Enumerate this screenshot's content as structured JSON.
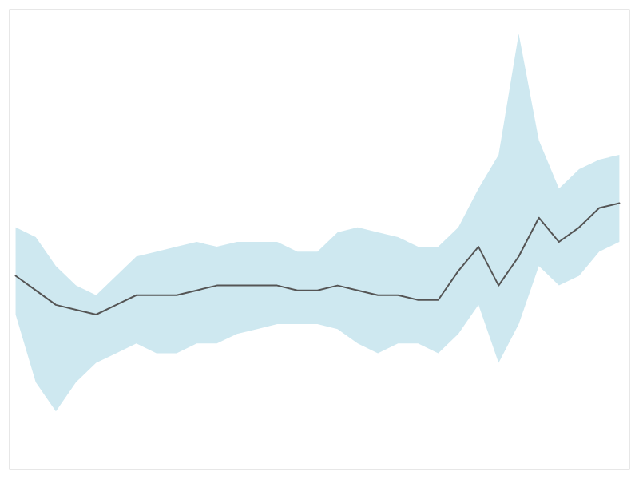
{
  "chart_data": {
    "type": "line",
    "x": [
      0,
      1,
      2,
      3,
      4,
      5,
      6,
      7,
      8,
      9,
      10,
      11,
      12,
      13,
      14,
      15,
      16,
      17,
      18,
      19,
      20,
      21,
      22,
      23,
      24,
      25,
      26,
      27,
      28,
      29,
      30
    ],
    "series": [
      {
        "type": "area",
        "color": "#add8e6",
        "lower": [
          42,
          28,
          22,
          28,
          32,
          34,
          36,
          34,
          34,
          36,
          36,
          38,
          39,
          40,
          40,
          40,
          39,
          36,
          34,
          36,
          36,
          34,
          38,
          44,
          32,
          40,
          52,
          48,
          50,
          55,
          57
        ],
        "upper": [
          60,
          58,
          52,
          48,
          46,
          50,
          54,
          55,
          56,
          57,
          56,
          57,
          57,
          57,
          55,
          55,
          59,
          60,
          59,
          58,
          56,
          56,
          60,
          68,
          75,
          100,
          78,
          68,
          72,
          74,
          75
        ]
      },
      {
        "type": "line",
        "color": "#555555",
        "values": [
          50,
          47,
          44,
          43,
          42,
          44,
          46,
          46,
          46,
          47,
          48,
          48,
          48,
          48,
          47,
          47,
          48,
          47,
          46,
          46,
          45,
          45,
          51,
          56,
          48,
          54,
          62,
          57,
          60,
          64,
          65
        ]
      }
    ],
    "xlim": [
      -0.3,
      30.5
    ],
    "ylim": [
      10,
      105
    ],
    "tick_labels": false
  }
}
